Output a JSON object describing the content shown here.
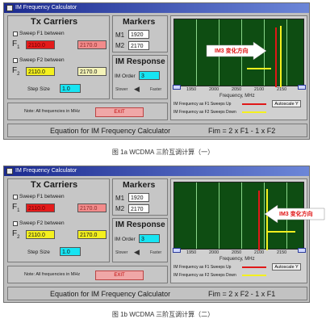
{
  "windows": [
    {
      "title": "IM Frequency Calculator",
      "tx": {
        "heading": "Tx Carriers",
        "sweep1_label": "Sweep F1 between",
        "f1_from": "2110.0",
        "f1_to": "2170.0",
        "sweep2_label": "Sweep F2 between",
        "f2_from": "2110.0",
        "f2_to": "2170.0",
        "f1_symbol": "F",
        "f1_sub": "1",
        "f2_symbol": "F",
        "f2_sub": "2",
        "step_label": "Step Size",
        "step_value": "1.0"
      },
      "markers": {
        "heading": "Markers",
        "m1_label": "M1",
        "m1_value": "1920",
        "m2_label": "M2",
        "m2_value": "2170"
      },
      "im": {
        "heading": "IM Response",
        "order_label": "IM Order",
        "order_value": "3",
        "slower": "Slower",
        "faster": "Faster"
      },
      "note": "Note: All frequencies in MHz",
      "exit": "EXIT",
      "graph": {
        "ticks": [
          "1950",
          "2000",
          "2050",
          "2100",
          "2150"
        ],
        "axis_label": "Frequency, MHz",
        "legend1": "IM Frequency as F1 Sweeps Up",
        "legend2": "IM Frequency as F2 Sweeps Down",
        "autoscale": "Autoscale Y",
        "annotation": "IM3 变化方向"
      },
      "equation_label": "Equation for IM Frequency Calculator",
      "equation": "Fim = 2 x F1 - 1 x F2",
      "colors": {
        "plot_bg": "#0e4d12",
        "marker_red": "#e01818",
        "marker_yellow": "#f4f01e"
      }
    },
    {
      "title": "IM Frequency Calculator",
      "tx": {
        "heading": "Tx Carriers",
        "sweep1_label": "Sweep F1 between",
        "f1_from": "2110.0",
        "f1_to": "2170.0",
        "sweep2_label": "Sweep F2 between",
        "f2_from": "2110.0",
        "f2_to": "2170.0",
        "f1_symbol": "F",
        "f1_sub": "1",
        "f2_symbol": "F",
        "f2_sub": "2",
        "step_label": "Step Size",
        "step_value": "1.0"
      },
      "markers": {
        "heading": "Markers",
        "m1_label": "M1",
        "m1_value": "1920",
        "m2_label": "M2",
        "m2_value": "2170"
      },
      "im": {
        "heading": "IM Response",
        "order_label": "IM Order",
        "order_value": "3",
        "slower": "Slower",
        "faster": "Faster"
      },
      "note": "Note: All frequencies in MHz",
      "exit": "EXIT",
      "graph": {
        "ticks": [
          "1950",
          "2000",
          "2050",
          "2100",
          "2150"
        ],
        "axis_label": "Frequency, MHz",
        "legend1": "IM Frequency as F1 Sweeps Up",
        "legend2": "IM Frequency as F2 Sweeps Down",
        "autoscale": "Autoscale Y",
        "annotation": "IM3 变化方向"
      },
      "equation_label": "Equation for IM Frequency Calculator",
      "equation": "Fim = 2 x F2 - 1 x F1",
      "colors": {
        "plot_bg": "#0e4d12",
        "marker_red": "#e01818",
        "marker_yellow": "#f4f01e"
      }
    }
  ],
  "captions": [
    "图 1a  WCDMA 三阶互调计算（一）",
    "图 1b  WCDMA 三阶互调计算（二）"
  ]
}
